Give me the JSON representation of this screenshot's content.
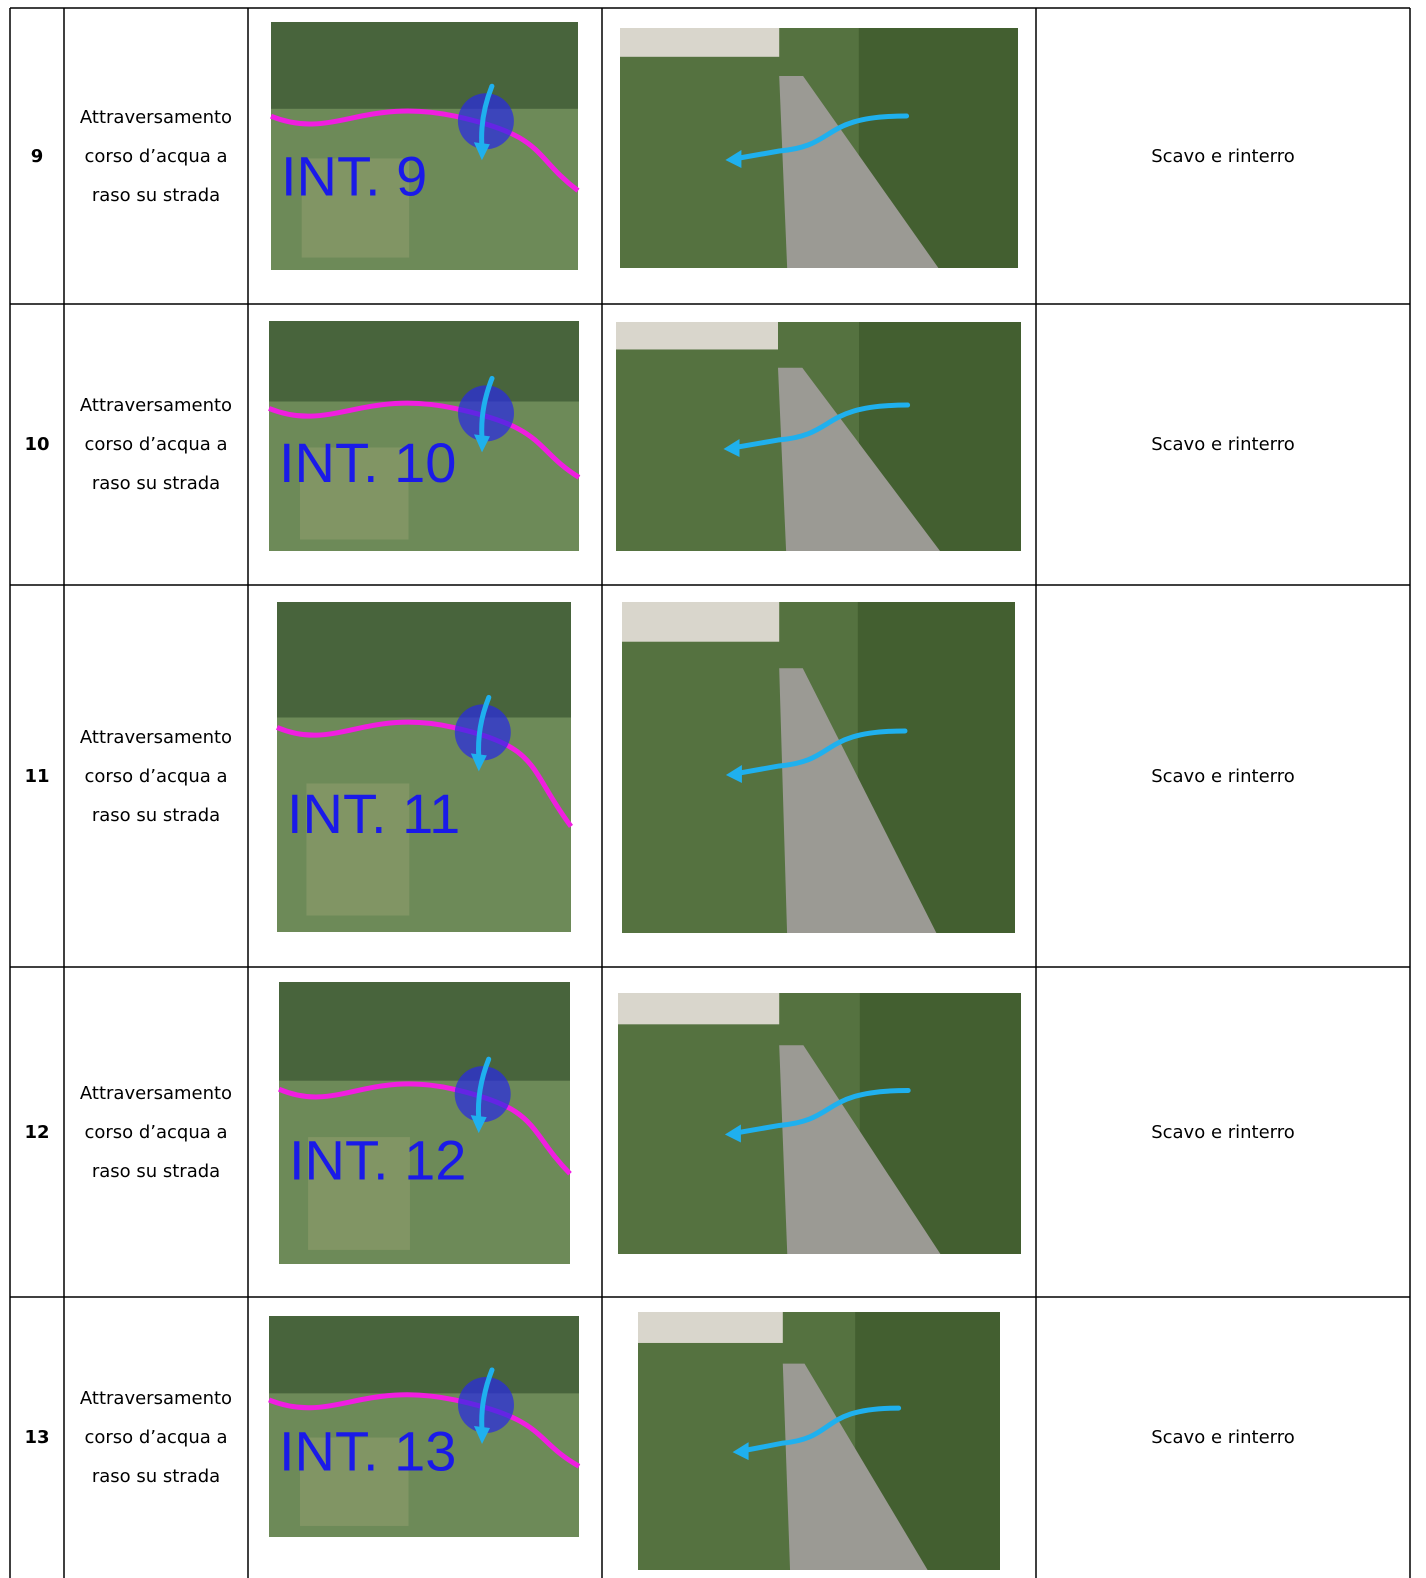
{
  "table": {
    "rows": [
      {
        "id": "9",
        "description": "Attraversamento corso d’acqua a raso su strada",
        "map_label": "INT. 9",
        "works": "Scavo e rinterro"
      },
      {
        "id": "10",
        "description": "Attraversamento corso d’acqua a raso su strada",
        "map_label": "INT. 10",
        "works": "Scavo e rinterro"
      },
      {
        "id": "11",
        "description": "Attraversamento corso d’acqua a raso su strada",
        "map_label": "INT. 11",
        "works": "Scavo e rinterro"
      },
      {
        "id": "12",
        "description": "Attraversamento corso d’acqua a raso su strada",
        "map_label": "INT. 12",
        "works": "Scavo e rinterro"
      },
      {
        "id": "13",
        "description": "Attraversamento corso d’acqua a raso su strada",
        "map_label": "INT. 13",
        "works": "Scavo e rinterro"
      }
    ]
  }
}
